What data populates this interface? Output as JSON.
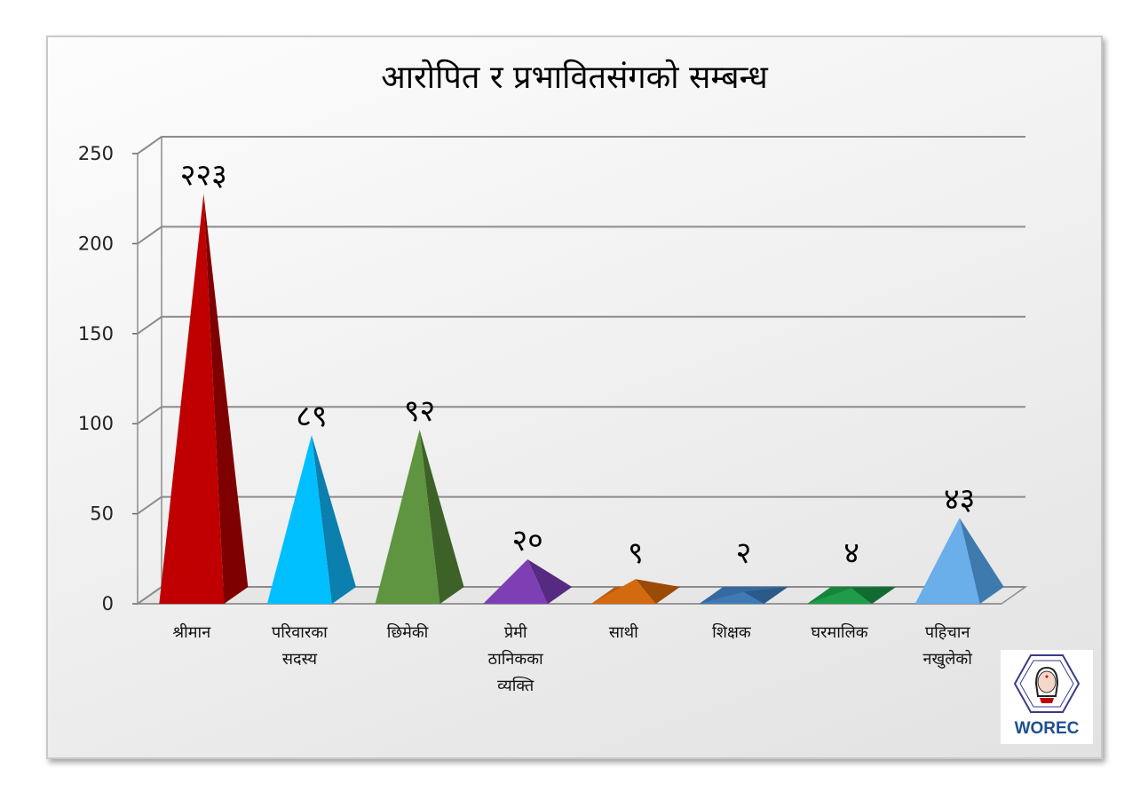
{
  "chart_data": {
    "type": "bar",
    "style": "3d-pyramid",
    "title": "आरोपित र प्रभावितसंगको सम्बन्ध",
    "xlabel": "",
    "ylabel": "",
    "ylim": [
      0,
      250
    ],
    "yticks": [
      "0",
      "50",
      "100",
      "150",
      "200",
      "250"
    ],
    "grid": true,
    "legend": "none",
    "categories": [
      [
        "श्रीमान"
      ],
      [
        "परिवारका",
        "सदस्य"
      ],
      [
        "छिमेकी"
      ],
      [
        "प्रेमी",
        "ठानिकका",
        "व्यक्ति"
      ],
      [
        "साथी"
      ],
      [
        "शिक्षक"
      ],
      [
        "घरमालिक"
      ],
      [
        "पहिचान",
        "नखुलेको"
      ]
    ],
    "values": [
      223,
      89,
      92,
      20,
      9,
      2,
      4,
      43
    ],
    "data_labels": [
      "२२३",
      "८९",
      "९२",
      "२०",
      "९",
      "२",
      "४",
      "४३"
    ],
    "colors": [
      {
        "front": "#c00000",
        "side": "#7f0000",
        "top": "#9a0000"
      },
      {
        "front": "#00bfff",
        "side": "#0b7fad",
        "top": "#0a96cc"
      },
      {
        "front": "#5f9440",
        "side": "#3c6228",
        "top": "#4a7a32"
      },
      {
        "front": "#7d3fb3",
        "side": "#552a80",
        "top": "#6a3499"
      },
      {
        "front": "#d46a10",
        "side": "#9b4a08",
        "top": "#b85b0c"
      },
      {
        "front": "#3f7ab5",
        "side": "#2b5a8a",
        "top": "#356aa0"
      },
      {
        "front": "#1f9c4a",
        "side": "#126b31",
        "top": "#17843c"
      },
      {
        "front": "#6aaeea",
        "side": "#3f7aae",
        "top": "#5595cf"
      }
    ]
  },
  "logo": {
    "text": "WOREC",
    "icon": "worec-logo-icon"
  }
}
